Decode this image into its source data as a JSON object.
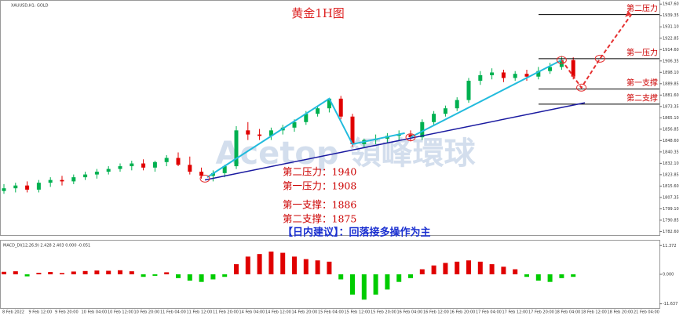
{
  "header": "XAUUSD,H1: GOLD",
  "watermark": "Acetop 領峰環球",
  "chart_data": {
    "type": "candlestick",
    "title": "黄金1H图",
    "open": [
      1812,
      1814,
      1816,
      1813,
      1818,
      1820,
      1819,
      1822,
      1824,
      1826,
      1828,
      1830,
      1832,
      1829,
      1833,
      1836,
      1831,
      1826,
      1823,
      1825,
      1830,
      1856,
      1853,
      1852,
      1856,
      1858,
      1862,
      1868,
      1872,
      1879,
      1866,
      1846,
      1849,
      1850,
      1852,
      1853,
      1851,
      1862,
      1868,
      1872,
      1878,
      1892,
      1896,
      1898,
      1894,
      1897,
      1895,
      1899,
      1902,
      1907
    ],
    "high": [
      1817,
      1818,
      1819,
      1820,
      1822,
      1823,
      1824,
      1826,
      1828,
      1830,
      1832,
      1834,
      1835,
      1834,
      1838,
      1840,
      1837,
      1829,
      1827,
      1831,
      1859,
      1862,
      1857,
      1858,
      1860,
      1864,
      1870,
      1874,
      1878,
      1881,
      1868,
      1850,
      1853,
      1854,
      1856,
      1856,
      1864,
      1870,
      1874,
      1880,
      1894,
      1899,
      1901,
      1900,
      1899,
      1900,
      1902,
      1905,
      1910,
      1909
    ],
    "low": [
      1810,
      1811,
      1811,
      1811,
      1815,
      1816,
      1817,
      1820,
      1821,
      1824,
      1826,
      1827,
      1827,
      1826,
      1830,
      1830,
      1824,
      1821,
      1819,
      1822,
      1828,
      1849,
      1849,
      1849,
      1853,
      1855,
      1860,
      1866,
      1869,
      1864,
      1844,
      1843,
      1846,
      1847,
      1849,
      1848,
      1849,
      1860,
      1866,
      1870,
      1876,
      1889,
      1893,
      1891,
      1892,
      1892,
      1893,
      1897,
      1900,
      1893
    ],
    "close": [
      1814,
      1816,
      1813,
      1818,
      1820,
      1819,
      1822,
      1824,
      1826,
      1828,
      1830,
      1832,
      1829,
      1833,
      1836,
      1831,
      1826,
      1823,
      1825,
      1830,
      1856,
      1853,
      1852,
      1856,
      1858,
      1862,
      1868,
      1872,
      1879,
      1866,
      1846,
      1849,
      1850,
      1852,
      1853,
      1851,
      1862,
      1868,
      1872,
      1878,
      1892,
      1896,
      1898,
      1894,
      1897,
      1895,
      1899,
      1902,
      1907,
      1895
    ],
    "up_color": "#00b050",
    "down_color": "#e00000",
    "ylim": [
      1780,
      1950
    ],
    "yticks": [
      {
        "value": 1947.6,
        "label": "1947.60"
      },
      {
        "value": 1939.35,
        "label": "1939.35"
      },
      {
        "value": 1931.1,
        "label": "1931.10"
      },
      {
        "value": 1922.85,
        "label": "1922.85"
      },
      {
        "value": 1914.6,
        "label": "1914.60"
      },
      {
        "value": 1906.35,
        "label": "1906.35"
      },
      {
        "value": 1898.1,
        "label": "1898.10"
      },
      {
        "value": 1889.85,
        "label": "1889.85"
      },
      {
        "value": 1881.6,
        "label": "1881.60"
      },
      {
        "value": 1873.35,
        "label": "1873.35"
      },
      {
        "value": 1865.1,
        "label": "1865.10"
      },
      {
        "value": 1856.85,
        "label": "1856.85"
      },
      {
        "value": 1848.6,
        "label": "1848.60"
      },
      {
        "value": 1840.35,
        "label": "1840.35"
      },
      {
        "value": 1832.1,
        "label": "1832.10"
      },
      {
        "value": 1823.85,
        "label": "1823.85"
      },
      {
        "value": 1815.6,
        "label": "1815.60"
      },
      {
        "value": 1807.35,
        "label": "1807.35"
      },
      {
        "value": 1799.1,
        "label": "1799.10"
      },
      {
        "value": 1790.85,
        "label": "1790.85"
      },
      {
        "value": 1782.6,
        "label": "1782.60"
      }
    ],
    "x_labels": [
      "8 Feb 2022",
      "9 Feb 12:00",
      "9 Feb 20:00",
      "10 Feb 04:00",
      "10 Feb 12:00",
      "10 Feb 20:00",
      "11 Feb 04:00",
      "11 Feb 12:00",
      "11 Feb 20:00",
      "14 Feb 04:00",
      "14 Feb 12:00",
      "14 Feb 20:00",
      "15 Feb 04:00",
      "15 Feb 12:00",
      "15 Feb 20:00",
      "16 Feb 04:00",
      "16 Feb 12:00",
      "16 Feb 20:00",
      "17 Feb 04:00",
      "17 Feb 12:00",
      "17 Feb 20:00",
      "18 Feb 04:00",
      "18 Feb 12:00",
      "18 Feb 20:00",
      "21 Feb 04:00"
    ],
    "levels": [
      {
        "name": "第二压力",
        "value": 1940
      },
      {
        "name": "第一压力",
        "value": 1908
      },
      {
        "name": "第一支撑",
        "value": 1886
      },
      {
        "name": "第二支撑",
        "value": 1875
      }
    ],
    "trendlines": [
      {
        "color": "#1a1aa0",
        "points": [
          [
            17.3,
            1820
          ],
          [
            50,
            1876
          ]
        ]
      },
      {
        "color": "#22bbdd",
        "points": [
          [
            17.5,
            1822
          ],
          [
            28,
            1879
          ],
          [
            30,
            1846
          ],
          [
            34.5,
            1854
          ]
        ]
      },
      {
        "color": "#22bbdd",
        "points": [
          [
            35,
            1851
          ],
          [
            48,
            1907
          ]
        ]
      }
    ],
    "arrow": {
      "color": "#e53030",
      "points": [
        [
          48,
          1907
        ],
        [
          49.7,
          1887
        ],
        [
          51.3,
          1908
        ],
        [
          54,
          1940
        ]
      ]
    },
    "markers": [
      [
        17.3,
        1821
      ],
      [
        35,
        1851
      ],
      [
        48,
        1907
      ],
      [
        49.7,
        1887
      ],
      [
        51.3,
        1908
      ]
    ],
    "notes": [
      "第二压力：1940",
      "第一压力：1908",
      "第一支撑：1886",
      "第二支撑：1875"
    ],
    "advice": "【日内建议】：回落接多操作为主",
    "macd": {
      "label": "MACD_DI(12,26,9) 2.428 2.403 0.000 -0.051",
      "values": [
        1,
        1.2,
        -0.8,
        0.6,
        0.9,
        0.5,
        1.1,
        1.3,
        1.5,
        1.4,
        1.6,
        1.2,
        -1,
        -0.6,
        0.8,
        -1.5,
        -2.5,
        -3,
        -2,
        -1,
        4,
        7,
        8,
        9,
        8.5,
        7,
        6,
        5.5,
        5,
        -2,
        -8,
        -10,
        -8,
        -6,
        -3,
        -1.5,
        2,
        3.5,
        4.5,
        5,
        5.5,
        5,
        4,
        3,
        2,
        -1,
        -2.5,
        -3,
        -1.5,
        -1
      ],
      "up_color": "#e00000",
      "down_color": "#00cc00",
      "ylim": [
        -13,
        13
      ],
      "yticks": [
        {
          "value": 11.372,
          "label": "11.372"
        },
        {
          "value": 0,
          "label": "0.000"
        },
        {
          "value": -11.637,
          "label": "-11.637"
        }
      ]
    }
  }
}
